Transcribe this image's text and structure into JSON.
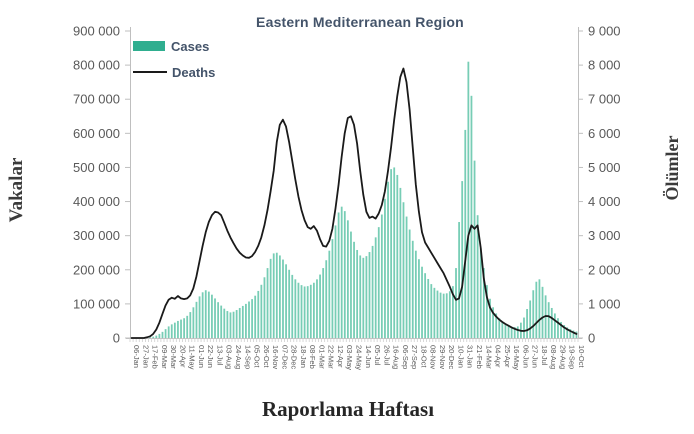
{
  "title": "Eastern Mediterranean Region",
  "legend": {
    "cases_label": "Cases",
    "deaths_label": "Deaths"
  },
  "axes": {
    "left_title": "Vakalar",
    "right_title": "Ölümler",
    "x_title": "Raporlama Haftası",
    "left_tick_labels": [
      "900 000",
      "800 000",
      "700 000",
      "600 000",
      "500 000",
      "400 000",
      "300 000",
      "200 000",
      "100 000",
      "0"
    ],
    "right_tick_labels": [
      "9 000",
      "8 000",
      "7 000",
      "6 000",
      "5 000",
      "4 000",
      "3 000",
      "2 000",
      "1 000",
      "0"
    ]
  },
  "colors": {
    "cases": "#2FAE8F",
    "cases_bar": "#55C0A2",
    "deaths": "#1A1A1A",
    "title": "#44546A",
    "axis_text": "#595959",
    "axis_title_text": "#3B3B3B",
    "frame": "#BFBFBF"
  },
  "chart_data": {
    "type": "bar+line",
    "title": "Eastern Mediterranean Region",
    "xlabel": "Raporlama Haftası",
    "ylabel_left": "Vakalar",
    "ylabel_right": "Ölümler",
    "legend_position": "top-left-inside",
    "grid": false,
    "left_axis": {
      "min": 0,
      "max": 900000,
      "step": 100000
    },
    "right_axis": {
      "min": 0,
      "max": 9000,
      "step": 1000
    },
    "x_tick_interval_weeks": 3,
    "x_tick_labels": [
      "06-Jan",
      "27-Jan",
      "17-Feb",
      "09-Mar",
      "30-Mar",
      "20-Apr",
      "11-May",
      "01-Jun",
      "22-Jun",
      "13-Jul",
      "03-Aug",
      "24-Aug",
      "14-Sep",
      "05-Oct",
      "26-Oct",
      "16-Nov",
      "07-Dec",
      "28-Dec",
      "18-Jan",
      "08-Feb",
      "01-Mar",
      "22-Mar",
      "12-Apr",
      "03-May",
      "24-May",
      "14-Jun",
      "05-Jul",
      "26-Jul",
      "16-Aug",
      "06-Sep",
      "27-Sep",
      "18-Oct",
      "08-Nov",
      "29-Nov",
      "20-Dec",
      "10-Jan",
      "31-Jan",
      "21-Feb",
      "14-Mar",
      "04-Apr",
      "25-Apr",
      "16-May",
      "06-Jun",
      "27-Jun",
      "18-Jul",
      "08-Aug",
      "29-Aug",
      "19-Sep",
      "10-Oct"
    ],
    "series": [
      {
        "name": "Cases",
        "type": "bar",
        "axis": "left",
        "values": [
          0,
          0,
          0,
          0,
          0,
          1000,
          2000,
          4000,
          7000,
          12000,
          18000,
          26000,
          34000,
          40000,
          45000,
          50000,
          54000,
          58000,
          65000,
          76000,
          90000,
          106000,
          122000,
          134000,
          140000,
          136000,
          127000,
          116000,
          105000,
          95000,
          86000,
          79000,
          75000,
          77000,
          82000,
          88000,
          94000,
          100000,
          107000,
          114000,
          124000,
          138000,
          156000,
          178000,
          205000,
          232000,
          248000,
          250000,
          242000,
          230000,
          216000,
          200000,
          185000,
          172000,
          162000,
          155000,
          151000,
          152000,
          156000,
          162000,
          172000,
          186000,
          205000,
          228000,
          256000,
          290000,
          330000,
          368000,
          385000,
          372000,
          345000,
          312000,
          282000,
          258000,
          242000,
          235000,
          240000,
          252000,
          270000,
          295000,
          325000,
          362000,
          408000,
          458000,
          495000,
          500000,
          478000,
          440000,
          398000,
          356000,
          318000,
          285000,
          256000,
          231000,
          209000,
          190000,
          173000,
          158000,
          147000,
          139000,
          133000,
          130000,
          131000,
          137000,
          152000,
          205000,
          340000,
          460000,
          610000,
          810000,
          710000,
          520000,
          360000,
          263000,
          205000,
          155000,
          115000,
          90000,
          72000,
          58000,
          48000,
          41000,
          36000,
          33000,
          32000,
          34000,
          45000,
          60000,
          85000,
          110000,
          140000,
          165000,
          172000,
          150000,
          125000,
          105000,
          88000,
          72000,
          58000,
          47000,
          38000,
          31000,
          26000,
          22000,
          19000
        ]
      },
      {
        "name": "Deaths",
        "type": "line",
        "axis": "right",
        "values": [
          0,
          0,
          0,
          0,
          0,
          20,
          50,
          120,
          250,
          450,
          700,
          950,
          1120,
          1180,
          1150,
          1230,
          1160,
          1140,
          1160,
          1250,
          1450,
          1800,
          2250,
          2700,
          3100,
          3400,
          3600,
          3700,
          3680,
          3600,
          3380,
          3150,
          2950,
          2780,
          2620,
          2500,
          2420,
          2360,
          2350,
          2400,
          2520,
          2700,
          2950,
          3300,
          3750,
          4300,
          4900,
          5750,
          6250,
          6400,
          6200,
          5750,
          5200,
          4650,
          4150,
          3750,
          3450,
          3250,
          3200,
          3280,
          3150,
          2900,
          2700,
          2680,
          2850,
          3200,
          3800,
          4500,
          5300,
          6000,
          6450,
          6500,
          6250,
          5700,
          4900,
          4200,
          3700,
          3520,
          3560,
          3500,
          3650,
          3900,
          4300,
          4900,
          5600,
          6400,
          7100,
          7650,
          7900,
          7500,
          6700,
          5600,
          4500,
          3700,
          3100,
          2800,
          2650,
          2500,
          2350,
          2200,
          2050,
          1900,
          1700,
          1500,
          1280,
          1120,
          1160,
          1500,
          2250,
          3000,
          3300,
          3200,
          3300,
          2650,
          1750,
          1200,
          900,
          740,
          630,
          540,
          470,
          410,
          360,
          310,
          270,
          235,
          210,
          205,
          225,
          275,
          350,
          440,
          530,
          600,
          645,
          640,
          590,
          520,
          450,
          380,
          310,
          255,
          205,
          160,
          120
        ]
      }
    ]
  }
}
